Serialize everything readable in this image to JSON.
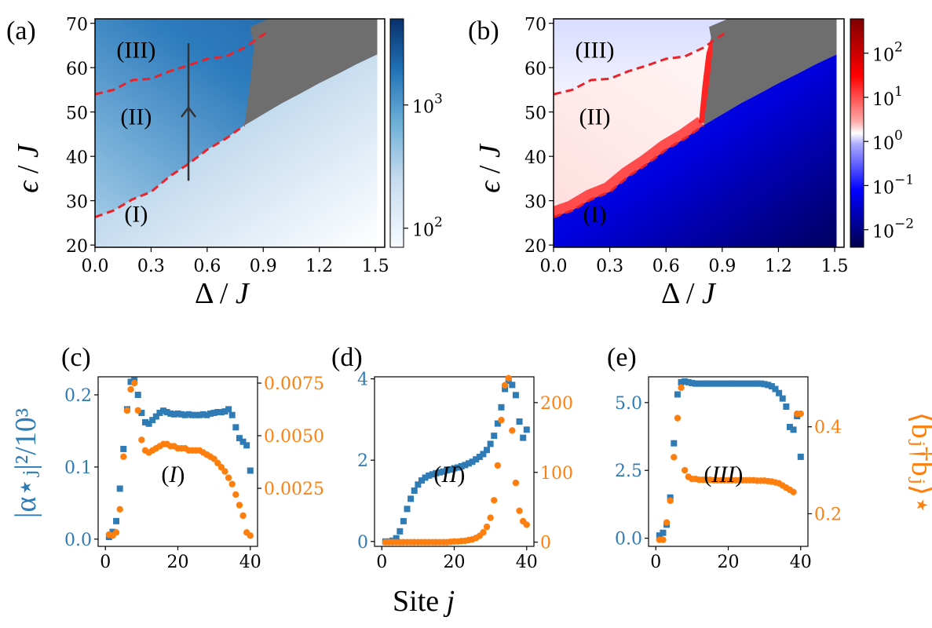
{
  "colors": {
    "blue_series": "#2f7bb5",
    "orange_series": "#ff7f0e",
    "boundary": "#e8232a",
    "gray_region": "#6e6e6e",
    "blue_dark": "#08306b",
    "blue_light": "#f7fbff",
    "seismic_dark_red": "#7f0000",
    "seismic_dark_blue": "#00004c"
  },
  "chart_data": [
    {
      "panel": "(a)",
      "type": "heatmap",
      "xlabel_sym": "Δ",
      "xlabel_unit": "J",
      "ylabel_sym": "ϵ",
      "ylabel_unit": "J",
      "xlim": [
        0.0,
        1.55
      ],
      "ylim": [
        19.5,
        71
      ],
      "xticks": [
        "0.0",
        "0.3",
        "0.6",
        "0.9",
        "1.2",
        "1.5"
      ],
      "xtick_values": [
        0.0,
        0.3,
        0.6,
        0.9,
        1.2,
        1.5
      ],
      "yticks": [
        "20",
        "30",
        "40",
        "50",
        "60",
        "70"
      ],
      "ytick_values": [
        20,
        30,
        40,
        50,
        60,
        70
      ],
      "colorbar": {
        "scale": "log",
        "range": [
          70,
          5000
        ],
        "ticks": [
          {
            "base": "10",
            "exp": "2",
            "value": 100
          },
          {
            "base": "10",
            "exp": "3",
            "value": 1000
          }
        ]
      },
      "regions": [
        {
          "label": "(I)",
          "x": 0.22,
          "y": 27
        },
        {
          "label": "(II)",
          "x": 0.22,
          "y": 49
        },
        {
          "label": "(III)",
          "x": 0.22,
          "y": 64
        }
      ],
      "arrow": {
        "x": 0.5,
        "y_from": 34.5,
        "y_to": 51
      },
      "boundary_lower": [
        [
          0.0,
          26.3
        ],
        [
          0.1,
          27.8
        ],
        [
          0.2,
          30.3
        ],
        [
          0.3,
          32.0
        ],
        [
          0.4,
          35.5
        ],
        [
          0.5,
          38.3
        ],
        [
          0.6,
          41.5
        ],
        [
          0.7,
          44.0
        ],
        [
          0.8,
          47.0
        ],
        [
          0.9,
          49.5
        ],
        [
          1.0,
          52.0
        ],
        [
          1.1,
          54.2
        ],
        [
          1.2,
          56.5
        ],
        [
          1.3,
          58.6
        ],
        [
          1.4,
          60.8
        ],
        [
          1.51,
          63.0
        ]
      ],
      "boundary_upper": [
        [
          0.0,
          54.0
        ],
        [
          0.1,
          55.0
        ],
        [
          0.2,
          57.2
        ],
        [
          0.3,
          57.5
        ],
        [
          0.4,
          59.2
        ],
        [
          0.5,
          60.5
        ],
        [
          0.6,
          62.0
        ],
        [
          0.7,
          62.5
        ],
        [
          0.8,
          64.5
        ],
        [
          0.92,
          68.0
        ]
      ],
      "gray_region": [
        [
          0.83,
          69.2
        ],
        [
          0.93,
          71
        ],
        [
          1.51,
          71
        ],
        [
          1.51,
          63.0
        ],
        [
          1.4,
          60.8
        ],
        [
          1.3,
          58.6
        ],
        [
          1.2,
          56.5
        ],
        [
          1.1,
          54.2
        ],
        [
          1.0,
          52.0
        ],
        [
          0.9,
          49.5
        ],
        [
          0.8,
          47.0
        ],
        [
          0.83,
          56.5
        ],
        [
          0.85,
          64.5
        ]
      ]
    },
    {
      "panel": "(b)",
      "type": "heatmap",
      "xlabel_sym": "Δ",
      "xlabel_unit": "J",
      "ylabel_sym": "ϵ",
      "ylabel_unit": "J",
      "xlim": [
        0.0,
        1.55
      ],
      "ylim": [
        19.5,
        71
      ],
      "xticks": [
        "0.0",
        "0.3",
        "0.6",
        "0.9",
        "1.2",
        "1.5"
      ],
      "xtick_values": [
        0.0,
        0.3,
        0.6,
        0.9,
        1.2,
        1.5
      ],
      "yticks": [
        "20",
        "30",
        "40",
        "50",
        "60",
        "70"
      ],
      "ytick_values": [
        20,
        30,
        40,
        50,
        60,
        70
      ],
      "colorbar": {
        "scale": "log",
        "range": [
          0.004,
          600
        ],
        "ticks": [
          {
            "base": "10",
            "exp": "2",
            "value": 100
          },
          {
            "base": "10",
            "exp": "1",
            "value": 10
          },
          {
            "base": "10",
            "exp": "0",
            "value": 1
          },
          {
            "base": "10",
            "exp": "−1",
            "value": 0.1
          },
          {
            "base": "10",
            "exp": "−2",
            "value": 0.01
          }
        ]
      },
      "regions": [
        {
          "label": "(III)",
          "x": 0.22,
          "y": 64
        },
        {
          "label": "(II)",
          "x": 0.22,
          "y": 49
        },
        {
          "label": "(I)",
          "x": 0.22,
          "y": 27
        }
      ]
    },
    {
      "panel": "(c)",
      "type": "scatter",
      "annotation": "I",
      "xlim": [
        -2,
        42
      ],
      "xticks": [
        "0",
        "20",
        "40"
      ],
      "xtick_values": [
        0,
        20,
        40
      ],
      "left_axis": {
        "ylim": [
          -0.01,
          0.225
        ],
        "ticks": [
          "0.0",
          "0.1",
          "0.2"
        ],
        "tick_values": [
          0.0,
          0.1,
          0.2
        ]
      },
      "right_axis": {
        "ylim": [
          -0.00026,
          0.0078
        ],
        "ticks": [
          "0.0025",
          "0.0050",
          "0.0075"
        ],
        "tick_values": [
          0.0025,
          0.005,
          0.0075
        ]
      },
      "series": [
        {
          "name": "blue",
          "axis": "left",
          "x": [
            1,
            2,
            3,
            4,
            5,
            6,
            7,
            8,
            9,
            10,
            11,
            12,
            13,
            14,
            15,
            16,
            17,
            18,
            19,
            20,
            21,
            22,
            23,
            24,
            25,
            26,
            27,
            28,
            29,
            30,
            31,
            32,
            33,
            34,
            35,
            36,
            37,
            38,
            39,
            40
          ],
          "values": [
            0.003,
            0.01,
            0.025,
            0.07,
            0.125,
            0.18,
            0.218,
            0.22,
            0.2,
            0.175,
            0.162,
            0.16,
            0.165,
            0.17,
            0.175,
            0.178,
            0.176,
            0.174,
            0.173,
            0.174,
            0.173,
            0.172,
            0.173,
            0.172,
            0.172,
            0.172,
            0.173,
            0.172,
            0.174,
            0.175,
            0.176,
            0.176,
            0.177,
            0.18,
            0.172,
            0.155,
            0.14,
            0.135,
            0.13,
            0.095
          ]
        },
        {
          "name": "orange",
          "axis": "right",
          "x": [
            1,
            2,
            3,
            4,
            5,
            6,
            7,
            8,
            9,
            10,
            11,
            12,
            13,
            14,
            15,
            16,
            17,
            18,
            19,
            20,
            21,
            22,
            23,
            24,
            25,
            26,
            27,
            28,
            29,
            30,
            31,
            32,
            33,
            34,
            35,
            36,
            37,
            38,
            39,
            40
          ],
          "values": [
            0.0003,
            0.00025,
            0.0004,
            0.0015,
            0.004,
            0.0062,
            0.0072,
            0.0075,
            0.0062,
            0.0048,
            0.0043,
            0.0042,
            0.0043,
            0.0044,
            0.0045,
            0.0046,
            0.0046,
            0.0045,
            0.0045,
            0.0044,
            0.0044,
            0.0044,
            0.0043,
            0.0043,
            0.0043,
            0.0043,
            0.0042,
            0.0041,
            0.004,
            0.0039,
            0.0037,
            0.0035,
            0.0033,
            0.003,
            0.0027,
            0.0022,
            0.0017,
            0.0012,
            0.0004,
            0.00025
          ]
        }
      ]
    },
    {
      "panel": "(d)",
      "type": "scatter",
      "annotation": "II",
      "xlim": [
        -2,
        42
      ],
      "xticks": [
        "0",
        "20",
        "40"
      ],
      "xtick_values": [
        0,
        20,
        40
      ],
      "left_axis": {
        "ylim": [
          -0.12,
          4.05
        ],
        "ticks": [
          "0",
          "2",
          "4"
        ],
        "tick_values": [
          0,
          2,
          4
        ]
      },
      "right_axis": {
        "ylim": [
          -6,
          237
        ],
        "ticks": [
          "0",
          "100",
          "200"
        ],
        "tick_values": [
          0,
          100,
          200
        ]
      },
      "series": [
        {
          "name": "blue",
          "axis": "left",
          "x": [
            1,
            2,
            3,
            4,
            5,
            6,
            7,
            8,
            9,
            10,
            11,
            12,
            13,
            14,
            15,
            16,
            17,
            18,
            19,
            20,
            21,
            22,
            23,
            24,
            25,
            26,
            27,
            28,
            29,
            30,
            31,
            32,
            33,
            34,
            35,
            36,
            37,
            38,
            39,
            40
          ],
          "values": [
            0.0,
            0.0,
            0.02,
            0.08,
            0.25,
            0.5,
            0.8,
            1.05,
            1.25,
            1.4,
            1.5,
            1.57,
            1.62,
            1.65,
            1.68,
            1.7,
            1.72,
            1.75,
            1.77,
            1.8,
            1.82,
            1.85,
            1.88,
            1.92,
            1.96,
            2.02,
            2.08,
            2.15,
            2.25,
            2.4,
            2.6,
            2.9,
            3.3,
            3.75,
            3.95,
            3.85,
            3.6,
            2.95,
            2.55,
            2.75
          ]
        },
        {
          "name": "orange",
          "axis": "right",
          "x": [
            1,
            2,
            3,
            4,
            5,
            6,
            7,
            8,
            9,
            10,
            11,
            12,
            13,
            14,
            15,
            16,
            17,
            18,
            19,
            20,
            21,
            22,
            23,
            24,
            25,
            26,
            27,
            28,
            29,
            30,
            31,
            32,
            33,
            34,
            35,
            36,
            37,
            38,
            39,
            40
          ],
          "values": [
            0,
            0,
            0,
            0,
            0,
            0,
            0,
            0,
            0,
            0,
            0,
            0,
            0,
            0,
            0,
            0,
            0,
            0,
            0.5,
            1,
            1,
            1.5,
            2,
            3,
            4,
            6,
            9,
            14,
            22,
            35,
            60,
            110,
            175,
            225,
            235,
            160,
            85,
            45,
            30,
            25
          ]
        }
      ]
    },
    {
      "panel": "(e)",
      "type": "scatter",
      "annotation": "III",
      "xlim": [
        -2,
        42
      ],
      "xticks": [
        "0",
        "20",
        "40"
      ],
      "xtick_values": [
        0,
        20,
        40
      ],
      "left_axis": {
        "ylim": [
          -0.3,
          5.95
        ],
        "ticks": [
          "0.0",
          "2.5",
          "5.0"
        ],
        "tick_values": [
          0.0,
          2.5,
          5.0
        ]
      },
      "right_axis": {
        "ylim": [
          0.125,
          0.515
        ],
        "ticks": [
          "0.2",
          "0.4"
        ],
        "tick_values": [
          0.2,
          0.4
        ]
      },
      "ylabel_right": "⟨b̂ⱼ†b̂ⱼ⟩⋆",
      "series": [
        {
          "name": "blue",
          "axis": "left",
          "x": [
            1,
            2,
            3,
            4,
            5,
            6,
            7,
            8,
            9,
            10,
            11,
            12,
            13,
            14,
            15,
            16,
            17,
            18,
            19,
            20,
            21,
            22,
            23,
            24,
            25,
            26,
            27,
            28,
            29,
            30,
            31,
            32,
            33,
            34,
            35,
            36,
            37,
            38,
            39,
            40
          ],
          "values": [
            0.1,
            0.2,
            0.5,
            1.5,
            3.5,
            5.3,
            5.75,
            5.78,
            5.75,
            5.72,
            5.7,
            5.7,
            5.7,
            5.7,
            5.7,
            5.7,
            5.7,
            5.7,
            5.7,
            5.7,
            5.7,
            5.7,
            5.7,
            5.7,
            5.7,
            5.7,
            5.7,
            5.7,
            5.7,
            5.68,
            5.65,
            5.6,
            5.5,
            5.35,
            5.15,
            4.85,
            4.1,
            4.0,
            4.5,
            3.0
          ]
        },
        {
          "name": "orange",
          "axis": "right",
          "x": [
            1,
            2,
            3,
            4,
            5,
            6,
            7,
            8,
            9,
            10,
            11,
            12,
            13,
            14,
            15,
            16,
            17,
            18,
            19,
            20,
            21,
            22,
            23,
            24,
            25,
            26,
            27,
            28,
            29,
            30,
            31,
            32,
            33,
            34,
            35,
            36,
            37,
            38,
            39,
            40
          ],
          "values": [
            0.14,
            0.14,
            0.18,
            0.23,
            0.33,
            0.42,
            0.49,
            0.3,
            0.285,
            0.28,
            0.28,
            0.278,
            0.278,
            0.278,
            0.278,
            0.277,
            0.277,
            0.277,
            0.277,
            0.277,
            0.277,
            0.277,
            0.277,
            0.277,
            0.277,
            0.277,
            0.277,
            0.276,
            0.276,
            0.276,
            0.275,
            0.274,
            0.272,
            0.27,
            0.265,
            0.26,
            0.255,
            0.25,
            0.43,
            0.43
          ]
        }
      ]
    }
  ],
  "labels": {
    "panel_a": "(a)",
    "panel_b": "(b)",
    "panel_c": "(c)",
    "panel_d": "(d)",
    "panel_e": "(e)",
    "delta_sym": "Δ",
    "eps_sym": "ϵ",
    "slash": "/",
    "unit_J": "J",
    "site_label": "Site",
    "site_var": "j",
    "c_left_ylabel": "|α⋆ⱼ|²/10³"
  }
}
